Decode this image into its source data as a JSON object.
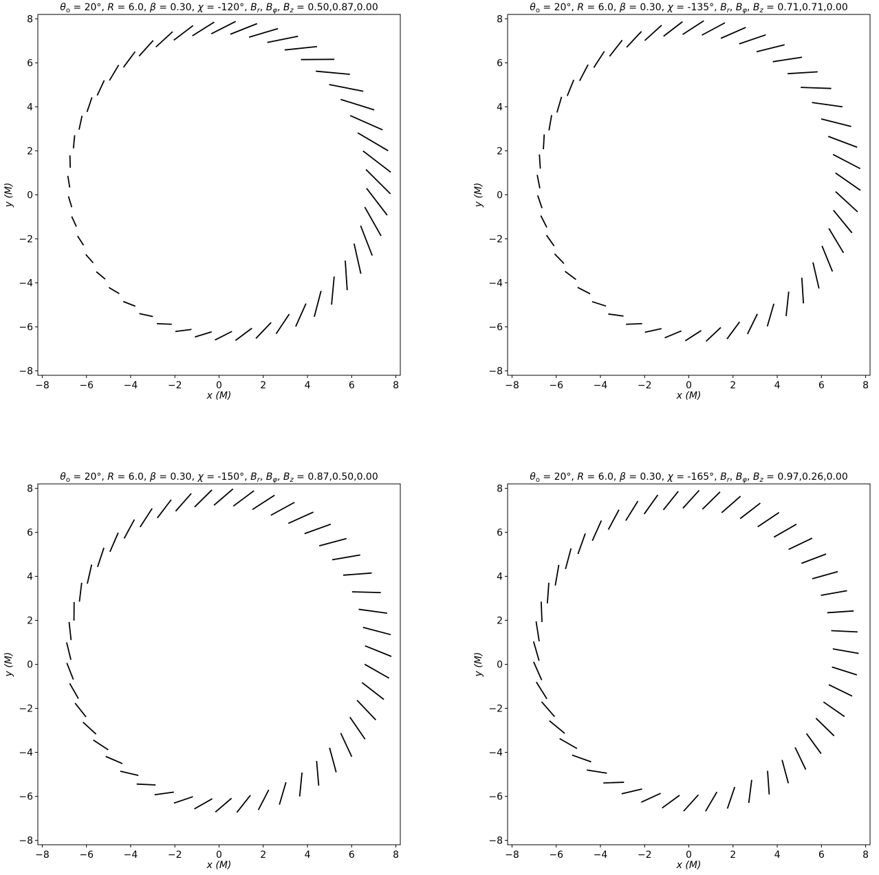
{
  "chart_data": [
    {
      "type": "scatter",
      "marker": "polarization-tick",
      "title": "θo = 20°, R = 6.0, β = 0.30, χ = -120°, Br, Bφ, Bz = 0.50,0.87,0.00",
      "title_parts": {
        "theta_o": "20",
        "R": "6.0",
        "beta": "0.30",
        "chi": "-120",
        "B_components": "0.50,0.87,0.00"
      },
      "xlabel": "x (M)",
      "ylabel": "y (M)",
      "xlim": [
        -8.2,
        8.2
      ],
      "ylim": [
        -8.2,
        8.2
      ],
      "xticks": [
        -8,
        -6,
        -4,
        -2,
        0,
        2,
        4,
        6,
        8
      ],
      "yticks": [
        -8,
        -6,
        -4,
        -2,
        0,
        2,
        4,
        6,
        8
      ],
      "ring": {
        "center": [
          0.2,
          0.6
        ],
        "rx": 7.0,
        "ry": 7.0
      },
      "tick_count": 48,
      "tick_angle_offset_deg": 45,
      "tick_length_range": [
        0.5,
        1.6
      ],
      "grid": false,
      "legend": "none"
    },
    {
      "type": "scatter",
      "marker": "polarization-tick",
      "title": "θo = 20°, R = 6.0, β = 0.30, χ = -135°, Br, Bφ, Bz = 0.71,0.71,0.00",
      "title_parts": {
        "theta_o": "20",
        "R": "6.0",
        "beta": "0.30",
        "chi": "-135",
        "B_components": "0.71,0.71,0.00"
      },
      "xlabel": "x (M)",
      "ylabel": "y (M)",
      "xlim": [
        -8.2,
        8.2
      ],
      "ylim": [
        -8.2,
        8.2
      ],
      "xticks": [
        -8,
        -6,
        -4,
        -2,
        0,
        2,
        4,
        6,
        8
      ],
      "yticks": [
        -8,
        -6,
        -4,
        -2,
        0,
        2,
        4,
        6,
        8
      ],
      "ring": {
        "center": [
          0.2,
          0.6
        ],
        "rx": 7.0,
        "ry": 7.0
      },
      "tick_count": 48,
      "tick_angle_offset_deg": 55,
      "tick_length_range": [
        0.6,
        1.4
      ],
      "grid": false,
      "legend": "none"
    },
    {
      "type": "scatter",
      "marker": "polarization-tick",
      "title": "θo = 20°, R = 6.0, β = 0.30, χ = -150°, Br, Bφ, Bz = 0.87,0.50,0.00",
      "title_parts": {
        "theta_o": "20",
        "R": "6.0",
        "beta": "0.30",
        "chi": "-150",
        "B_components": "0.87,0.50,0.00"
      },
      "xlabel": "x (M)",
      "ylabel": "y (M)",
      "xlim": [
        -8.2,
        8.2
      ],
      "ylim": [
        -8.2,
        8.2
      ],
      "xticks": [
        -8,
        -6,
        -4,
        -2,
        0,
        2,
        4,
        6,
        8
      ],
      "yticks": [
        -8,
        -6,
        -4,
        -2,
        0,
        2,
        4,
        6,
        8
      ],
      "ring": {
        "center": [
          0.2,
          0.6
        ],
        "rx": 7.0,
        "ry": 7.0
      },
      "tick_count": 48,
      "tick_angle_offset_deg": 68,
      "tick_length_range": [
        0.8,
        1.3
      ],
      "grid": false,
      "legend": "none"
    },
    {
      "type": "scatter",
      "marker": "polarization-tick",
      "title": "θo = 20°, R = 6.0, β = 0.30, χ = -165°, Br, Bφ, Bz = 0.97,0.26,0.00",
      "title_parts": {
        "theta_o": "20",
        "R": "6.0",
        "beta": "0.30",
        "chi": "-165",
        "B_components": "0.97,0.26,0.00"
      },
      "xlabel": "x (M)",
      "ylabel": "y (M)",
      "xlim": [
        -8.2,
        8.2
      ],
      "ylim": [
        -8.2,
        8.2
      ],
      "xticks": [
        -8,
        -6,
        -4,
        -2,
        0,
        2,
        4,
        6,
        8
      ],
      "yticks": [
        -8,
        -6,
        -4,
        -2,
        0,
        2,
        4,
        6,
        8
      ],
      "ring": {
        "center": [
          0.1,
          0.6
        ],
        "rx": 7.0,
        "ry": 6.9
      },
      "tick_count": 48,
      "tick_angle_offset_deg": 80,
      "tick_length_range": [
        0.9,
        1.2
      ],
      "grid": false,
      "legend": "none"
    }
  ]
}
